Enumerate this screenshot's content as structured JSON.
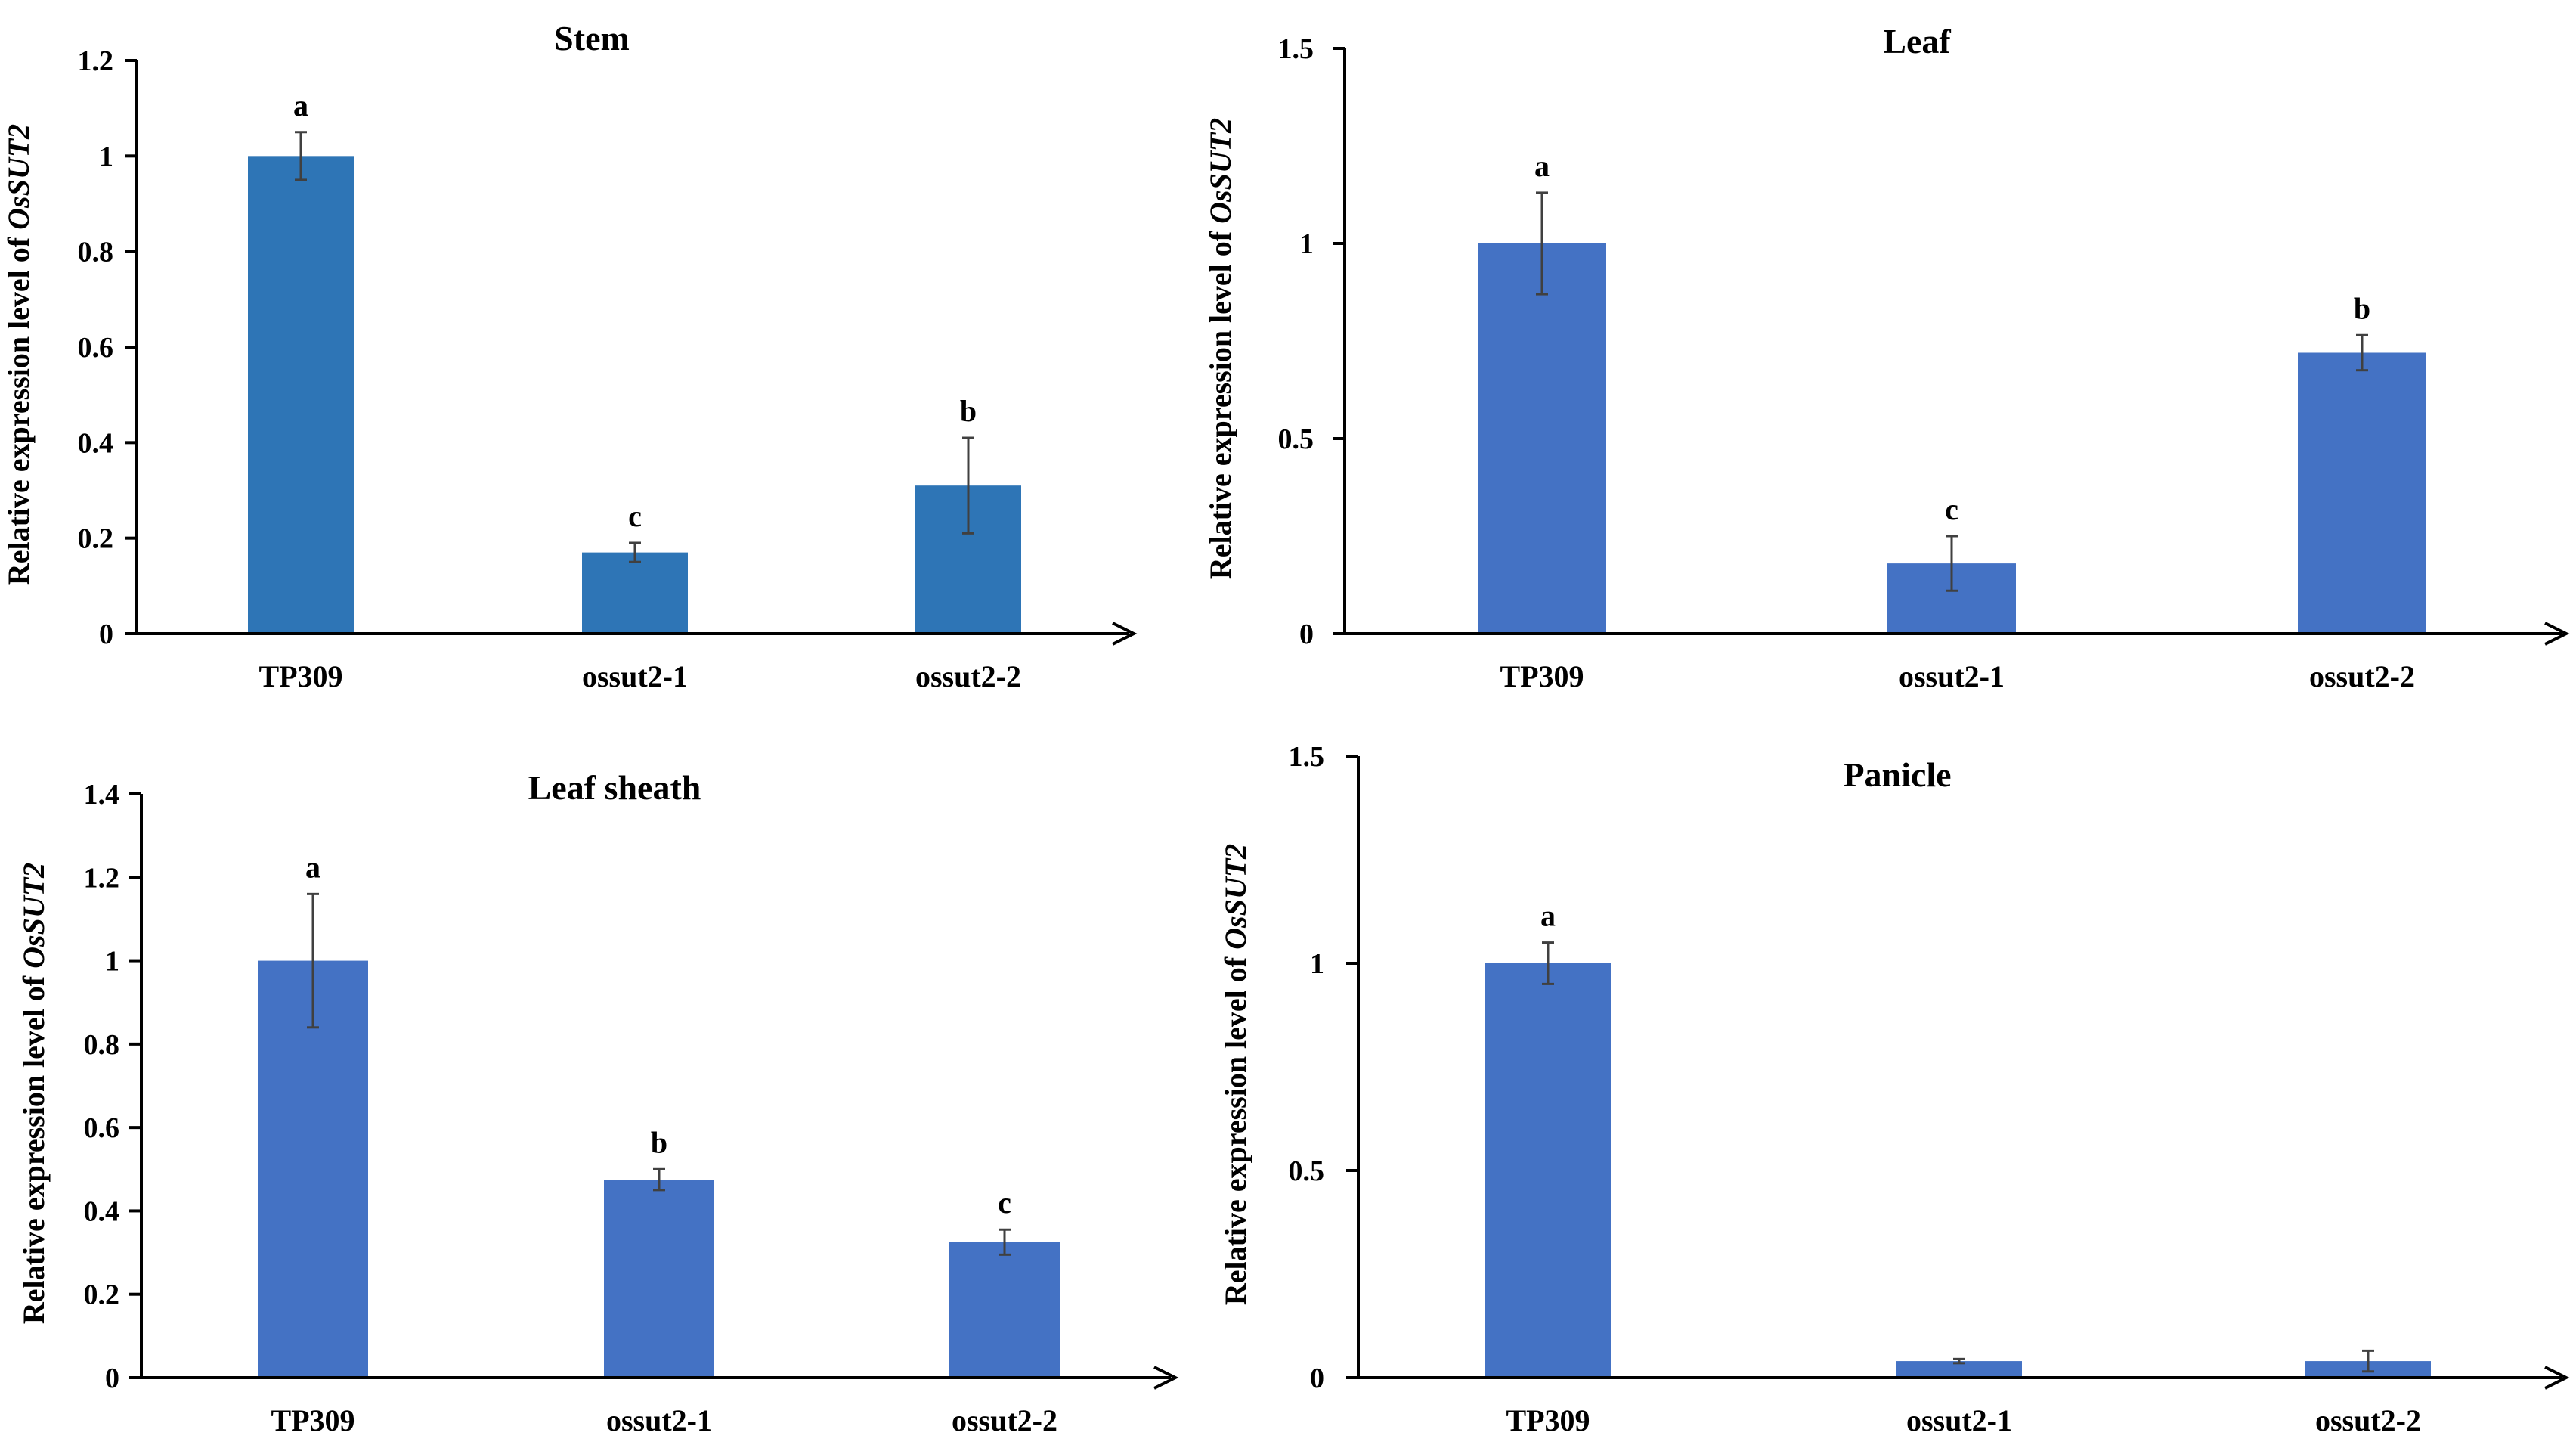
{
  "ylabel_prefix": "Relative expression level of ",
  "ylabel_gene": "OsSUT2",
  "chart_data": [
    {
      "type": "bar",
      "title": "Stem",
      "categories": [
        "TP309",
        "ossut2-1",
        "ossut2-2"
      ],
      "values": [
        1.0,
        0.17,
        0.31
      ],
      "errors": [
        0.05,
        0.02,
        0.1
      ],
      "letters": [
        "a",
        "c",
        "b"
      ],
      "ylim": [
        0,
        1.2
      ],
      "yticks": [
        0,
        0.2,
        0.4,
        0.6,
        0.8,
        1,
        1.2
      ],
      "ytick_labels": [
        "0",
        "0.2",
        "0.4",
        "0.6",
        "0.8",
        "1",
        "1.2"
      ],
      "bar_color": "#2E75B6",
      "grid": false
    },
    {
      "type": "bar",
      "title": "Leaf",
      "categories": [
        "TP309",
        "ossut2-1",
        "ossut2-2"
      ],
      "values": [
        1.0,
        0.18,
        0.72
      ],
      "errors": [
        0.13,
        0.07,
        0.045
      ],
      "letters": [
        "a",
        "c",
        "b"
      ],
      "ylim": [
        0,
        1.5
      ],
      "yticks": [
        0,
        0.5,
        1,
        1.5
      ],
      "ytick_labels": [
        "0",
        "0.5",
        "1",
        "1.5"
      ],
      "bar_color": "#4472C4",
      "grid": false
    },
    {
      "type": "bar",
      "title": "Leaf sheath",
      "categories": [
        "TP309",
        "ossut2-1",
        "ossut2-2"
      ],
      "values": [
        1.0,
        0.475,
        0.325
      ],
      "errors": [
        0.16,
        0.025,
        0.03
      ],
      "letters": [
        "a",
        "b",
        "c"
      ],
      "ylim": [
        0,
        1.4
      ],
      "yticks": [
        0,
        0.2,
        0.4,
        0.6,
        0.8,
        1,
        1.2,
        1.4
      ],
      "ytick_labels": [
        "0",
        "0.2",
        "0.4",
        "0.6",
        "0.8",
        "1",
        "1.2",
        "1.4"
      ],
      "bar_color": "#4472C4",
      "grid": false
    },
    {
      "type": "bar",
      "title": "Panicle",
      "categories": [
        "TP309",
        "ossut2-1",
        "ossut2-2"
      ],
      "values": [
        1.0,
        0.04,
        0.04
      ],
      "errors": [
        0.05,
        0.005,
        0.025
      ],
      "letters": [
        "a",
        "",
        ""
      ],
      "ylim": [
        0,
        1.5
      ],
      "yticks": [
        0,
        0.5,
        1,
        1.5
      ],
      "ytick_labels": [
        "0",
        "0.5",
        "1",
        "1.5"
      ],
      "bar_color": "#4472C4",
      "grid": false
    }
  ]
}
